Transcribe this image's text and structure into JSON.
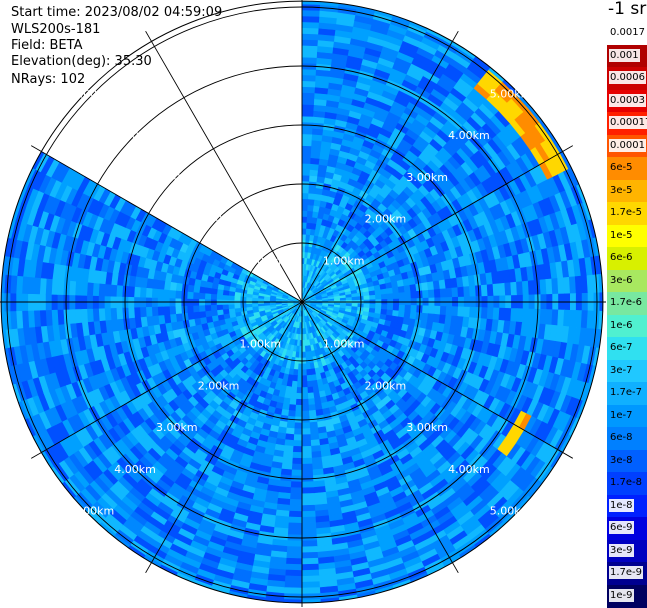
{
  "header": {
    "start_time": "Start time: 2023/08/02 04:59:09",
    "instrument": "WLS200s-181",
    "field": "Field: BETA",
    "elevation": "Elevation(deg): 35.30",
    "nrays": "NRays: 102"
  },
  "colorbar": {
    "units": "-1 sr",
    "labels": [
      "0.0017",
      "0.001",
      "0.0006",
      "0.0003",
      "0.00017",
      "0.0001",
      "6e-5",
      "3e-5",
      "1.7e-5",
      "1e-5",
      "6e-6",
      "3e-6",
      "1.7e-6",
      "1e-6",
      "6e-7",
      "3e-7",
      "1.7e-7",
      "1e-7",
      "6e-8",
      "3e-8",
      "1.7e-8",
      "1e-8",
      "6e-9",
      "3e-9",
      "1.7e-9",
      "1e-9"
    ],
    "colors": [
      "#ffffff",
      "#b00000",
      "#cc0000",
      "#e60000",
      "#ff2000",
      "#ff5500",
      "#ff8c00",
      "#ffb400",
      "#ffd700",
      "#ffff00",
      "#d8f000",
      "#a8e860",
      "#78e8a0",
      "#50f0d0",
      "#30e0f0",
      "#20c8ff",
      "#10b0ff",
      "#0098ff",
      "#0080ff",
      "#0060ff",
      "#0040ff",
      "#0020ff",
      "#0000e0",
      "#0000c0",
      "#000090",
      "#000060"
    ]
  },
  "chart_data": {
    "type": "heatmap",
    "projection": "polar PPI",
    "field": "BETA",
    "units": "-1 sr",
    "scale": "log",
    "range_rings_km": [
      1,
      2,
      3,
      4,
      5
    ],
    "ring_labels": [
      "1.00km",
      "2.00km",
      "3.00km",
      "4.00km",
      "5.00km"
    ],
    "max_range_km": 5.1,
    "nrays": 102,
    "no_data_sector_deg": [
      300,
      360
    ],
    "typical_value": "1e-7 to 1.7e-7",
    "enhanced_arcs": [
      {
        "azimuth_deg": [
          38,
          62
        ],
        "range_km": [
          4.6,
          5.0
        ],
        "value": "1e-5"
      },
      {
        "azimuth_deg": [
          118,
          128
        ],
        "range_km": [
          4.1,
          4.3
        ],
        "value": "1.7e-5"
      }
    ]
  }
}
